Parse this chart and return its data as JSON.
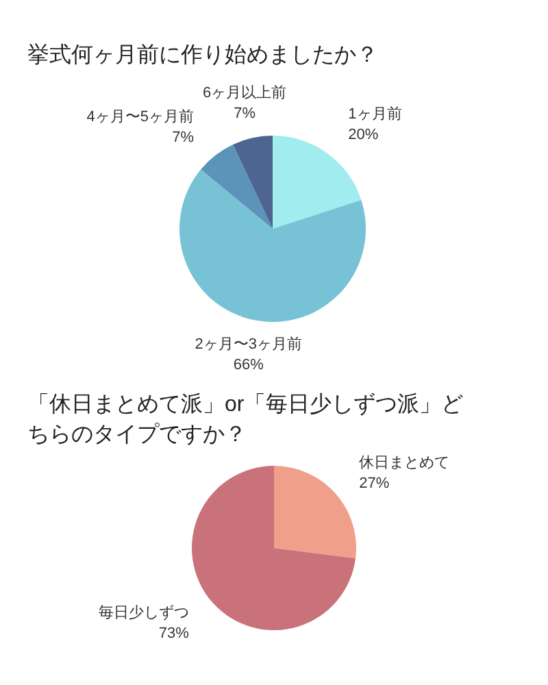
{
  "chart_data": [
    {
      "type": "pie",
      "title": "挙式何ヶ月前に作り始めましたか？",
      "categories": [
        "1ヶ月前",
        "2ヶ月〜3ヶ月前",
        "4ヶ月〜5ヶ月前",
        "6ヶ月以上前"
      ],
      "values": [
        20,
        66,
        7,
        7
      ],
      "value_labels": [
        "20%",
        "66%",
        "7%",
        "7%"
      ],
      "colors": [
        "#a0ecef",
        "#78c2d6",
        "#5b94b8",
        "#4f6591"
      ],
      "legend": false
    },
    {
      "type": "pie",
      "title": "「休日まとめて派」or「毎日少しずつ派」どちらのタイプですか？",
      "categories": [
        "休日まとめて",
        "毎日少しずつ"
      ],
      "values": [
        27,
        73
      ],
      "value_labels": [
        "27%",
        "73%"
      ],
      "colors": [
        "#f0a08a",
        "#c9727a"
      ],
      "legend": false
    }
  ]
}
